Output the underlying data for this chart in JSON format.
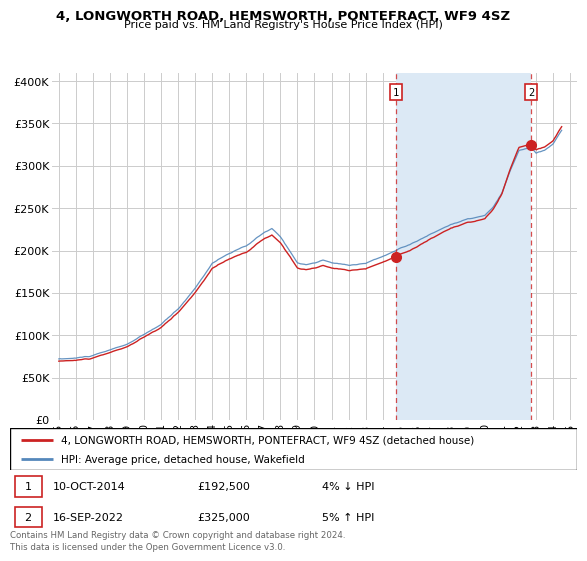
{
  "title": "4, LONGWORTH ROAD, HEMSWORTH, PONTEFRACT, WF9 4SZ",
  "subtitle": "Price paid vs. HM Land Registry's House Price Index (HPI)",
  "ylim": [
    0,
    410000
  ],
  "yticks": [
    0,
    50000,
    100000,
    150000,
    200000,
    250000,
    300000,
    350000,
    400000
  ],
  "ytick_labels": [
    "£0",
    "£50K",
    "£100K",
    "£150K",
    "£200K",
    "£250K",
    "£300K",
    "£350K",
    "£400K"
  ],
  "background_color": "#ffffff",
  "grid_color": "#cccccc",
  "fill_color": "#dce9f5",
  "hpi_color": "#5588bb",
  "property_color": "#cc2222",
  "sale1_date_label": "10-OCT-2014",
  "sale1_price": 192500,
  "sale1_hpi_diff": "4% ↓ HPI",
  "sale1_year": 2014.78,
  "sale2_date_label": "16-SEP-2022",
  "sale2_price": 325000,
  "sale2_hpi_diff": "5% ↑ HPI",
  "sale2_year": 2022.71,
  "legend_property_label": "4, LONGWORTH ROAD, HEMSWORTH, PONTEFRACT, WF9 4SZ (detached house)",
  "legend_hpi_label": "HPI: Average price, detached house, Wakefield",
  "footer": "Contains HM Land Registry data © Crown copyright and database right 2024.\nThis data is licensed under the Open Government Licence v3.0.",
  "xtick_labels": [
    "95",
    "96",
    "97",
    "98",
    "99",
    "00",
    "01",
    "02",
    "03",
    "04",
    "05",
    "06",
    "07",
    "08",
    "09",
    "10",
    "11",
    "12",
    "13",
    "14",
    "15",
    "16",
    "17",
    "18",
    "19",
    "20",
    "21",
    "22",
    "23",
    "24",
    "25"
  ]
}
